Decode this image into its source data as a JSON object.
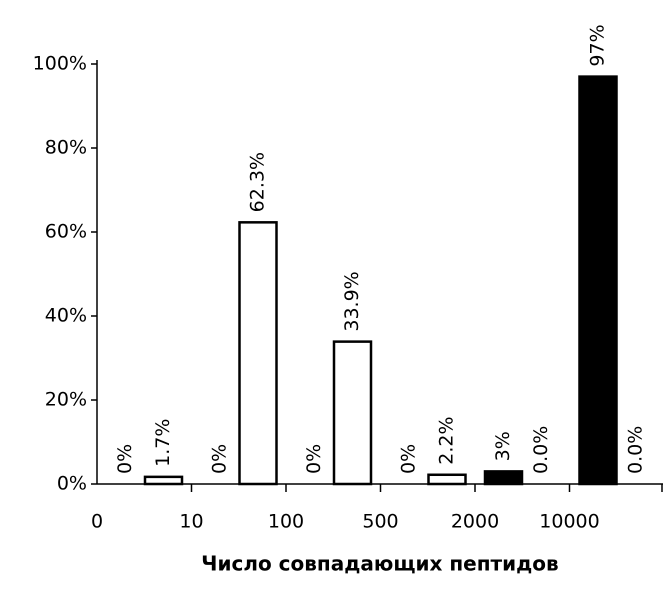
{
  "chart_data": {
    "type": "bar",
    "x_label": "Число совпадающих пептидов",
    "categories": [
      "0",
      "10",
      "100",
      "500",
      "2000",
      "10000"
    ],
    "series": [
      {
        "color": "#000000",
        "values": [
          0,
          0,
          0,
          0,
          3,
          97
        ],
        "value_labels": [
          "0%",
          "0%",
          "0%",
          "0%",
          "3%",
          "97%"
        ]
      },
      {
        "color": "#ffffff",
        "values": [
          1.7,
          62.3,
          33.9,
          2.2,
          0.0,
          0.0
        ],
        "value_labels": [
          "1.7%",
          "62.3%",
          "33.9%",
          "2.2%",
          "0.0%",
          "0.0%"
        ]
      }
    ],
    "ylim": [
      0,
      100
    ],
    "yticks": [
      {
        "value": 0,
        "label": "0%"
      },
      {
        "value": 20,
        "label": "20%"
      },
      {
        "value": 40,
        "label": "40%"
      },
      {
        "value": 60,
        "label": "60%"
      },
      {
        "value": 80,
        "label": "80%"
      },
      {
        "value": 100,
        "label": "100%"
      }
    ]
  }
}
